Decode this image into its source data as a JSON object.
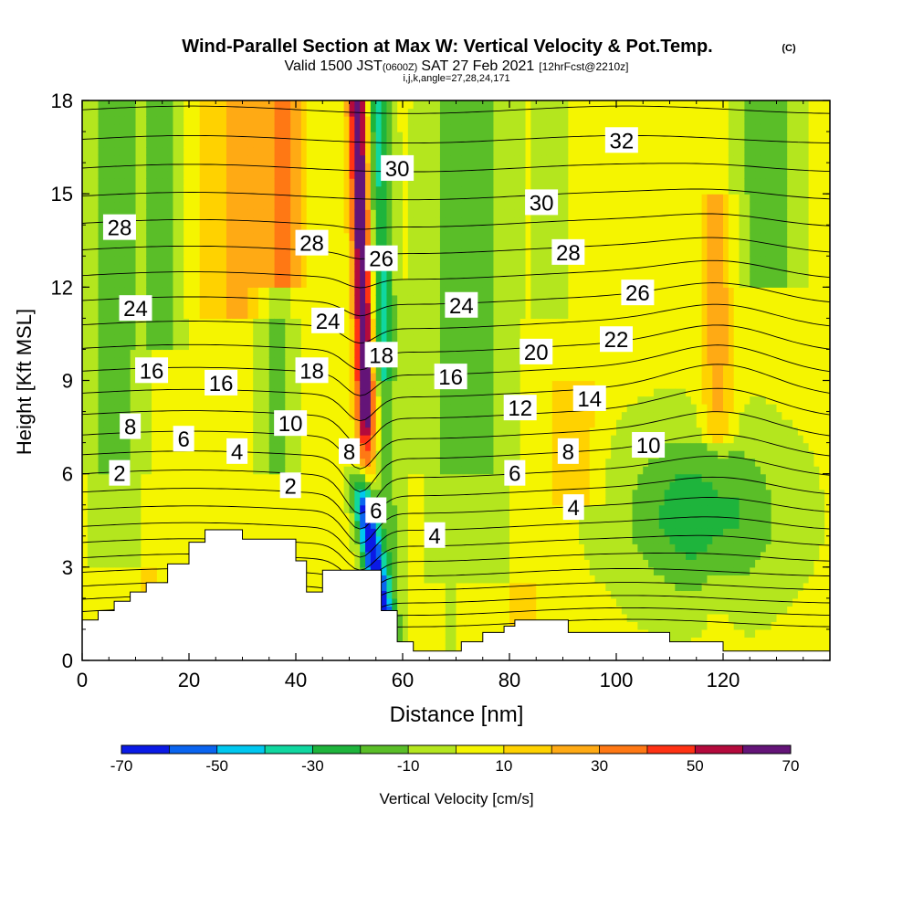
{
  "chart_data": {
    "type": "heatmap",
    "title": "Wind-Parallel Section at Max W: Vertical Velocity & Pot.Temp.",
    "title_mark": "(C)",
    "subtitle": {
      "prefix": "Valid 1500 JST",
      "utc": "(0600Z)",
      "date": "SAT 27 Feb 2021",
      "forecast": "[12hrFcst@2210z]"
    },
    "subtitle2": "i,j,k,angle=27,28,24,171",
    "xlabel": "Distance [nm]",
    "ylabel": "Height [Kft MSL]",
    "xlim": [
      0,
      140
    ],
    "ylim": [
      0,
      18
    ],
    "xticks": [
      0,
      20,
      40,
      60,
      80,
      100,
      120
    ],
    "yticks": [
      0,
      3,
      6,
      9,
      12,
      15,
      18
    ],
    "colorbar": {
      "label": "Vertical Velocity [cm/s]",
      "tick_labels": [
        "-70",
        "-50",
        "-30",
        "-10",
        "10",
        "30",
        "50",
        "70"
      ],
      "levels": [
        -70,
        -60,
        -50,
        -40,
        -30,
        -20,
        -10,
        0,
        10,
        20,
        30,
        40,
        50,
        60,
        70
      ],
      "colors": [
        "#0a1ae6",
        "#0a64f0",
        "#00c8f0",
        "#10d7a0",
        "#1eb43c",
        "#5abe28",
        "#b4e61e",
        "#f5f500",
        "#ffd200",
        "#ffaa14",
        "#ff7814",
        "#ff3214",
        "#b40a3c",
        "#641478"
      ]
    },
    "theta_labels": [
      {
        "text": "2",
        "x": 7,
        "y": 6.0
      },
      {
        "text": "2",
        "x": 39,
        "y": 5.6
      },
      {
        "text": "4",
        "x": 29,
        "y": 6.7
      },
      {
        "text": "4",
        "x": 66,
        "y": 4.0
      },
      {
        "text": "4",
        "x": 92,
        "y": 4.9
      },
      {
        "text": "6",
        "x": 19,
        "y": 7.1
      },
      {
        "text": "6",
        "x": 55,
        "y": 4.8
      },
      {
        "text": "6",
        "x": 81,
        "y": 6.0
      },
      {
        "text": "8",
        "x": 9,
        "y": 7.5
      },
      {
        "text": "8",
        "x": 50,
        "y": 6.7
      },
      {
        "text": "8",
        "x": 91,
        "y": 6.7
      },
      {
        "text": "10",
        "x": 39,
        "y": 7.6
      },
      {
        "text": "10",
        "x": 106,
        "y": 6.9
      },
      {
        "text": "12",
        "x": 82,
        "y": 8.1
      },
      {
        "text": "14",
        "x": 95,
        "y": 8.4
      },
      {
        "text": "16",
        "x": 13,
        "y": 9.3
      },
      {
        "text": "16",
        "x": 26,
        "y": 8.9
      },
      {
        "text": "16",
        "x": 69,
        "y": 9.1
      },
      {
        "text": "18",
        "x": 43,
        "y": 9.3
      },
      {
        "text": "18",
        "x": 56,
        "y": 9.8
      },
      {
        "text": "20",
        "x": 85,
        "y": 9.9
      },
      {
        "text": "22",
        "x": 100,
        "y": 10.3
      },
      {
        "text": "24",
        "x": 10,
        "y": 11.3
      },
      {
        "text": "24",
        "x": 46,
        "y": 10.9
      },
      {
        "text": "24",
        "x": 71,
        "y": 11.4
      },
      {
        "text": "26",
        "x": 56,
        "y": 12.9
      },
      {
        "text": "26",
        "x": 104,
        "y": 11.8
      },
      {
        "text": "28",
        "x": 7,
        "y": 13.9
      },
      {
        "text": "28",
        "x": 43,
        "y": 13.4
      },
      {
        "text": "28",
        "x": 91,
        "y": 13.1
      },
      {
        "text": "30",
        "x": 59,
        "y": 15.8
      },
      {
        "text": "30",
        "x": 86,
        "y": 14.7
      },
      {
        "text": "32",
        "x": 101,
        "y": 16.7
      }
    ],
    "terrain": [
      [
        0,
        1.3
      ],
      [
        3,
        1.3
      ],
      [
        3,
        1.6
      ],
      [
        6,
        1.6
      ],
      [
        6,
        1.9
      ],
      [
        9,
        1.9
      ],
      [
        9,
        2.2
      ],
      [
        12,
        2.2
      ],
      [
        12,
        2.5
      ],
      [
        16,
        2.5
      ],
      [
        16,
        3.1
      ],
      [
        20,
        3.1
      ],
      [
        20,
        3.8
      ],
      [
        23,
        3.8
      ],
      [
        23,
        4.2
      ],
      [
        30,
        4.2
      ],
      [
        30,
        3.9
      ],
      [
        40,
        3.9
      ],
      [
        40,
        3.2
      ],
      [
        42,
        3.2
      ],
      [
        42,
        2.2
      ],
      [
        45,
        2.2
      ],
      [
        45,
        2.9
      ],
      [
        56,
        2.9
      ],
      [
        56,
        1.6
      ],
      [
        59,
        1.6
      ],
      [
        59,
        0.6
      ],
      [
        62,
        0.6
      ],
      [
        62,
        0.3
      ],
      [
        71,
        0.3
      ],
      [
        71,
        0.6
      ],
      [
        75,
        0.6
      ],
      [
        75,
        0.9
      ],
      [
        79,
        0.9
      ],
      [
        79,
        1.1
      ],
      [
        81,
        1.1
      ],
      [
        81,
        1.3
      ],
      [
        91,
        1.3
      ],
      [
        91,
        0.9
      ],
      [
        110,
        0.9
      ],
      [
        110,
        0.6
      ],
      [
        120,
        0.6
      ],
      [
        120,
        0.3
      ],
      [
        140,
        0.3
      ]
    ]
  }
}
